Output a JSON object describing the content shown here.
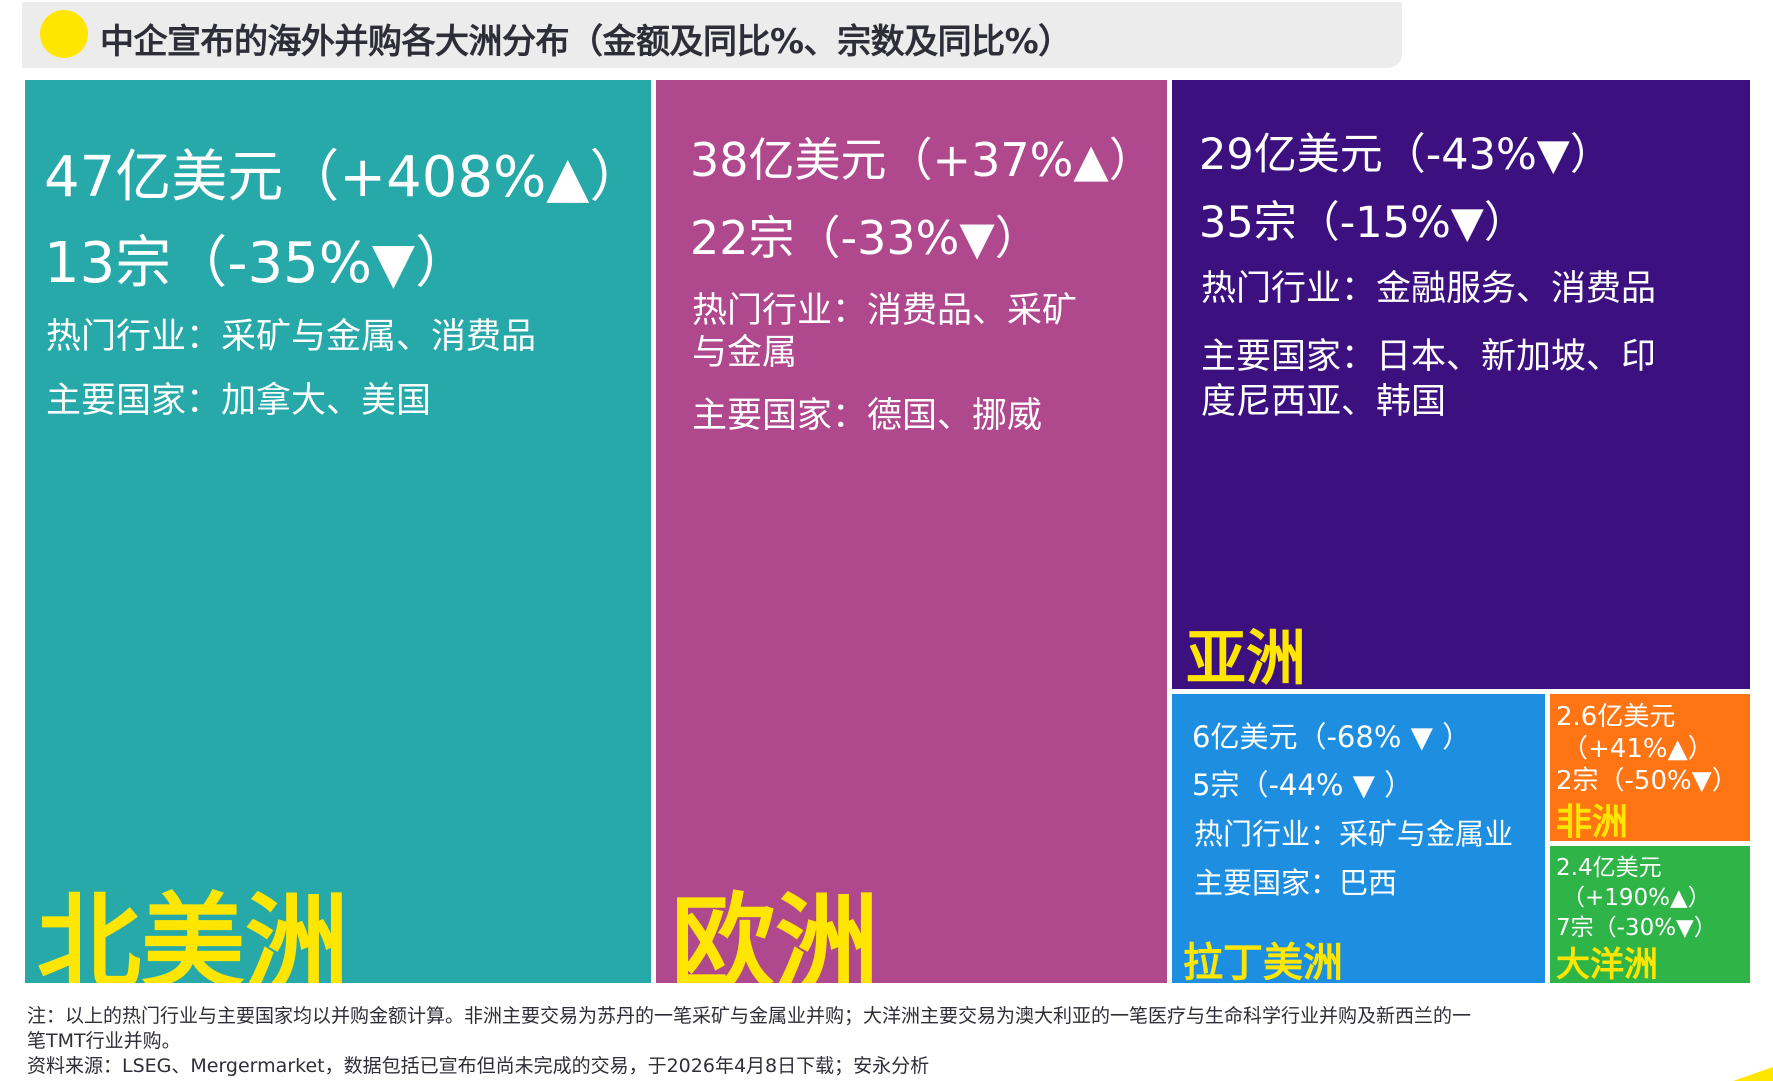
{
  "title": "中企宣布的海外并购各大洲分布（金额及同比%、宗数及同比%）",
  "colors": {
    "north_america": "#26a9a8",
    "europe": "#b0488e",
    "asia": "#3c117f",
    "latin_america": "#1e8fe0",
    "africa": "#ff7514",
    "oceania": "#2fb448",
    "region_name": "#ffe600"
  },
  "chart_data": {
    "type": "treemap",
    "title": "中企宣布的海外并购各大洲分布（金额及同比%、宗数及同比%）",
    "unit": "亿美元",
    "series": [
      {
        "key": "north_america",
        "name": "北美洲",
        "value": 47,
        "amount_text": "47亿美元（+408%▲）",
        "deals_text": "13宗（-35%▼）",
        "deals": 13,
        "value_yoy_pct": 408,
        "deals_yoy_pct": -35,
        "industry_text": "热门行业：采矿与金属、消费品",
        "countries_text": "主要国家：加拿大、美国"
      },
      {
        "key": "europe",
        "name": "欧洲",
        "value": 38,
        "amount_text": "38亿美元（+37%▲）",
        "deals_text": "22宗（-33%▼）",
        "deals": 22,
        "value_yoy_pct": 37,
        "deals_yoy_pct": -33,
        "industry_line1": "热门行业：消费品、采矿",
        "industry_line2": "与金属",
        "countries_text": "主要国家：德国、挪威"
      },
      {
        "key": "asia",
        "name": "亚洲",
        "value": 29,
        "amount_text": "29亿美元（-43%▼）",
        "deals_text": "35宗（-15%▼）",
        "deals": 35,
        "value_yoy_pct": -43,
        "deals_yoy_pct": -15,
        "industry_text": "热门行业：金融服务、消费品",
        "countries_line1": "主要国家：日本、新加坡、印",
        "countries_line2": "度尼西亚、韩国"
      },
      {
        "key": "latin_america",
        "name": "拉丁美洲",
        "value": 6,
        "amount_text": "6亿美元（-68% ▼ ）",
        "deals_text": "5宗（-44% ▼ ）",
        "deals": 5,
        "value_yoy_pct": -68,
        "deals_yoy_pct": -44,
        "industry_text": "热门行业：采矿与金属业",
        "countries_text": "主要国家：巴西"
      },
      {
        "key": "africa",
        "name": "非洲",
        "value": 2.6,
        "amount_line1": "2.6亿美元",
        "amount_line2": "（+41%▲）",
        "deals_text": "2宗（-50%▼）",
        "deals": 2,
        "value_yoy_pct": 41,
        "deals_yoy_pct": -50
      },
      {
        "key": "oceania",
        "name": "大洋洲",
        "value": 2.4,
        "amount_line1": "2.4亿美元",
        "amount_line2": "（+190%▲）",
        "deals_text": "7宗（-30%▼）",
        "deals": 7,
        "value_yoy_pct": 190,
        "deals_yoy_pct": -30
      }
    ]
  },
  "notes": {
    "line1": "注：以上的热门行业与主要国家均以并购金额计算。非洲主要交易为苏丹的一笔采矿与金属业并购；大洋洲主要交易为澳大利亚的一笔医疗与生命科学行业并购及新西兰的一",
    "line2": "笔TMT行业并购。",
    "source": "资料来源：LSEG、Mergermarket，数据包括已宣布但尚未完成的交易，于2026年4月8日下载；安永分析"
  }
}
